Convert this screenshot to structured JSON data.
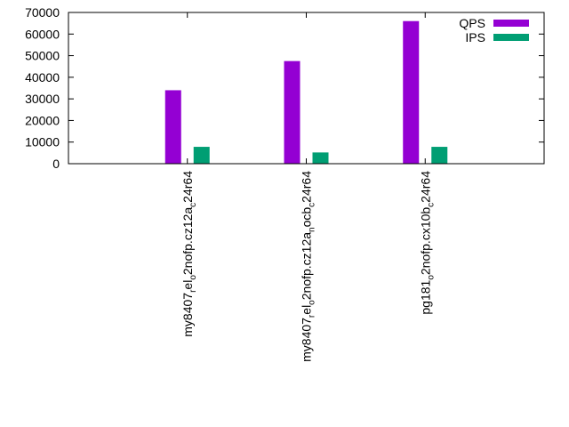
{
  "chart_data": {
    "type": "bar",
    "title": "",
    "xlabel": "",
    "ylabel": "",
    "ylim": [
      0,
      70000
    ],
    "yticks": [
      0,
      10000,
      20000,
      30000,
      40000,
      50000,
      60000,
      70000
    ],
    "categories": [
      {
        "main": "my8407",
        "parts": [
          {
            "t": "my8407",
            "sub": false
          },
          {
            "t": "r",
            "sub": true
          },
          {
            "t": "el",
            "sub": false
          },
          {
            "t": "o",
            "sub": true
          },
          {
            "t": "2nofp.cz12a",
            "sub": false
          },
          {
            "t": "c",
            "sub": true
          },
          {
            "t": "24r64",
            "sub": false
          }
        ]
      },
      {
        "main": "my8407",
        "parts": [
          {
            "t": "my8407",
            "sub": false
          },
          {
            "t": "r",
            "sub": true
          },
          {
            "t": "el",
            "sub": false
          },
          {
            "t": "o",
            "sub": true
          },
          {
            "t": "2nofp.cz12a",
            "sub": false
          },
          {
            "t": "n",
            "sub": true
          },
          {
            "t": "ocb",
            "sub": false
          },
          {
            "t": "c",
            "sub": true
          },
          {
            "t": "24r64",
            "sub": false
          }
        ]
      },
      {
        "main": "pg181",
        "parts": [
          {
            "t": "pg181",
            "sub": false
          },
          {
            "t": "o",
            "sub": true
          },
          {
            "t": "2nofp.cx10b",
            "sub": false
          },
          {
            "t": "c",
            "sub": true
          },
          {
            "t": "24r64",
            "sub": false
          }
        ]
      }
    ],
    "series": [
      {
        "name": "QPS",
        "color": "#9400d3",
        "values": [
          34000,
          47500,
          66000
        ]
      },
      {
        "name": "IPS",
        "color": "#009e73",
        "values": [
          7800,
          5200,
          7800
        ]
      }
    ],
    "legend_position": "top-right",
    "grid": false
  }
}
